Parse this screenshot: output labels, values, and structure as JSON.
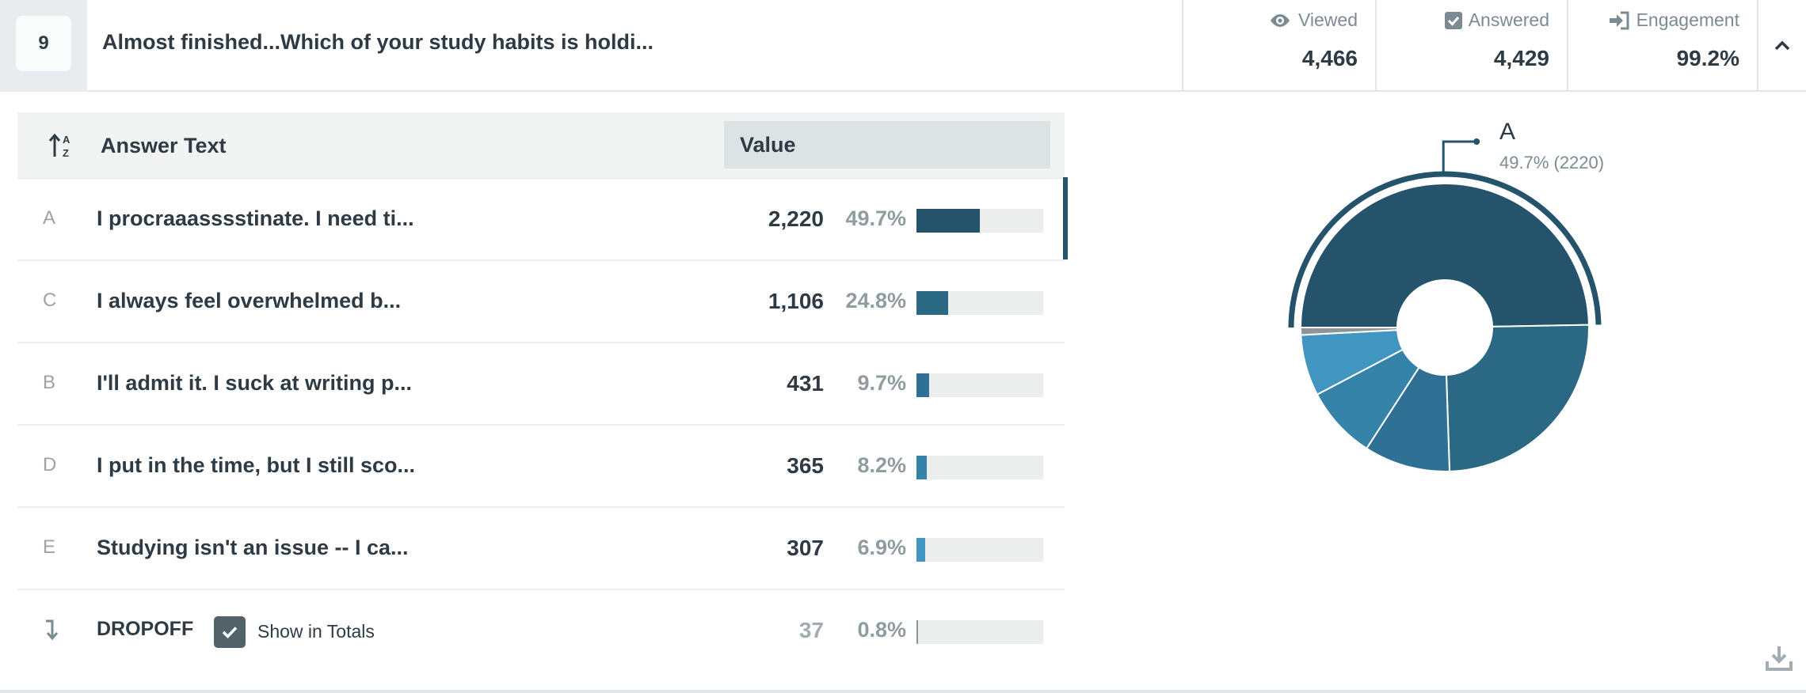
{
  "question": {
    "number": "9",
    "title": "Almost finished...Which of your study habits is holdi..."
  },
  "stats": {
    "viewed": {
      "label": "Viewed",
      "value": "4,466",
      "icon": "eye-icon"
    },
    "answered": {
      "label": "Answered",
      "value": "4,429",
      "icon": "checkbox-icon"
    },
    "engagement": {
      "label": "Engagement",
      "value": "99.2%",
      "icon": "sign-in-icon"
    }
  },
  "table": {
    "header": {
      "answer": "Answer Text",
      "value": "Value"
    },
    "rows": [
      {
        "letter": "A",
        "text": "I procraaasssstinate. I need ti...",
        "count": "2,220",
        "pct": "49.7%",
        "fraction": 0.497,
        "color": "#25536b"
      },
      {
        "letter": "C",
        "text": "I always feel overwhelmed b...",
        "count": "1,106",
        "pct": "24.8%",
        "fraction": 0.248,
        "color": "#2b6884"
      },
      {
        "letter": "B",
        "text": "I'll admit it. I suck at writing p...",
        "count": "431",
        "pct": "9.7%",
        "fraction": 0.097,
        "color": "#2e7195"
      },
      {
        "letter": "D",
        "text": "I put in the time, but I still sco...",
        "count": "365",
        "pct": "8.2%",
        "fraction": 0.082,
        "color": "#3683aa"
      },
      {
        "letter": "E",
        "text": "Studying isn't an issue -- I ca...",
        "count": "307",
        "pct": "6.9%",
        "fraction": 0.069,
        "color": "#4095c1"
      }
    ],
    "dropoff": {
      "label": "DROPOFF",
      "checkbox_label": "Show in Totals",
      "checked": true,
      "count": "37",
      "pct": "0.8%",
      "fraction": 0.008,
      "color": "#8d9599"
    }
  },
  "chart_data": {
    "type": "pie",
    "categories": [
      "A",
      "C",
      "B",
      "D",
      "E",
      "DROPOFF"
    ],
    "values": [
      2220,
      1106,
      431,
      365,
      307,
      37
    ],
    "percent": [
      49.7,
      24.8,
      9.7,
      8.2,
      6.9,
      0.8
    ],
    "colors": [
      "#25536b",
      "#2b6884",
      "#2e7195",
      "#3683aa",
      "#4095c1",
      "#8d9599"
    ],
    "highlighted": "A",
    "callout": {
      "label": "A",
      "value": "49.7% (2220)"
    }
  }
}
